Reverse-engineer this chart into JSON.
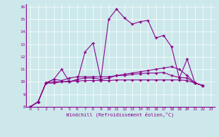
{
  "xlabel": "Windchill (Refroidissement éolien,°C)",
  "xlim": [
    -0.5,
    23.5
  ],
  "ylim": [
    8,
    16.2
  ],
  "xticks": [
    0,
    1,
    2,
    3,
    4,
    5,
    6,
    7,
    8,
    9,
    10,
    11,
    12,
    13,
    14,
    15,
    16,
    17,
    18,
    19,
    20,
    21,
    22,
    23
  ],
  "yticks": [
    8,
    9,
    10,
    11,
    12,
    13,
    14,
    15,
    16
  ],
  "bg_color": "#cce8eb",
  "line_color": "#880088",
  "grid_color": "#ffffff",
  "series": [
    [
      8.0,
      8.4,
      9.9,
      9.9,
      10.0,
      10.0,
      10.1,
      12.4,
      13.1,
      10.2,
      15.0,
      15.8,
      15.1,
      14.6,
      14.8,
      14.9,
      13.5,
      13.7,
      12.8,
      10.3,
      11.8,
      9.9,
      9.7
    ],
    [
      8.0,
      8.4,
      9.9,
      10.2,
      11.0,
      10.0,
      10.2,
      10.3,
      10.3,
      10.2,
      10.3,
      10.5,
      10.6,
      10.7,
      10.8,
      10.9,
      11.0,
      11.1,
      11.2,
      11.0,
      10.5,
      9.9,
      9.7
    ],
    [
      8.0,
      8.4,
      9.9,
      10.2,
      10.1,
      10.3,
      10.4,
      10.4,
      10.4,
      10.4,
      10.4,
      10.5,
      10.5,
      10.6,
      10.65,
      10.7,
      10.7,
      10.75,
      10.5,
      10.35,
      10.3,
      9.9,
      9.7
    ],
    [
      8.0,
      8.4,
      9.9,
      10.0,
      10.0,
      10.05,
      10.05,
      10.1,
      10.1,
      10.1,
      10.1,
      10.15,
      10.15,
      10.15,
      10.15,
      10.15,
      10.15,
      10.15,
      10.15,
      10.15,
      10.1,
      9.9,
      9.7
    ]
  ]
}
